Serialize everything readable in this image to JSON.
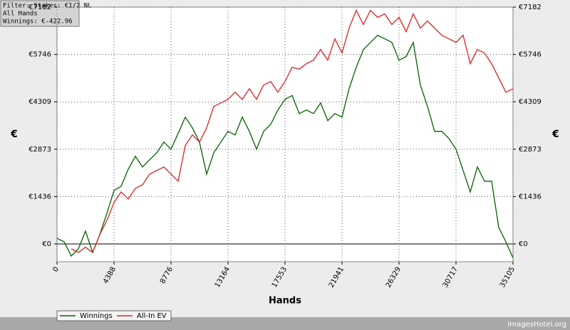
{
  "chart_data": {
    "type": "line",
    "info": [
      "Filter: Stakes: €1/2 NL",
      "All Hands",
      "Winnings: €-422.96"
    ],
    "x_label": "Hands",
    "y_label": "€",
    "y2_label": "€",
    "watermark": "ImagesHotel.org",
    "grid": true,
    "xlim": [
      0,
      35105
    ],
    "xticks": [
      0,
      4388,
      8776,
      13164,
      17553,
      21941,
      26329,
      30717,
      35105
    ],
    "ylim": [
      -540,
      7182
    ],
    "yticks": [
      {
        "value": 0,
        "label": "€0"
      },
      {
        "value": 1436,
        "label": "€1436"
      },
      {
        "value": 2873,
        "label": "€2873"
      },
      {
        "value": 4309,
        "label": "€4309"
      },
      {
        "value": 5746,
        "label": "€5746"
      },
      {
        "value": 7182,
        "label": "€7182"
      }
    ],
    "x": [
      0,
      549,
      1097,
      1646,
      2194,
      2743,
      3291,
      3840,
      4388,
      4937,
      5485,
      6034,
      6582,
      7131,
      7679,
      8228,
      8776,
      9325,
      9873,
      10422,
      10970,
      11519,
      12067,
      12616,
      13164,
      13713,
      14262,
      14810,
      15359,
      15907,
      16456,
      17004,
      17553,
      18101,
      18650,
      19198,
      19747,
      20295,
      20844,
      21392,
      21941,
      22489,
      23038,
      23586,
      24135,
      24683,
      25232,
      25780,
      26329,
      26877,
      27426,
      27975,
      28523,
      29072,
      29620,
      30169,
      30717,
      31266,
      31814,
      32363,
      32911,
      33460,
      34008,
      34557,
      35105
    ],
    "series": [
      {
        "name": "Winnings",
        "color": "#006400",
        "values": [
          173,
          65,
          -367,
          -150,
          389,
          -259,
          281,
          929,
          1620,
          1750,
          2268,
          2657,
          2333,
          2550,
          2765,
          3089,
          2873,
          3348,
          3845,
          3521,
          3089,
          2117,
          2765,
          3089,
          3413,
          3305,
          3845,
          3413,
          2873,
          3413,
          3629,
          4061,
          4385,
          4500,
          3953,
          4061,
          3953,
          4277,
          3737,
          3953,
          3845,
          4709,
          5357,
          5897,
          6113,
          6329,
          6221,
          6113,
          5573,
          5681,
          6113,
          4817,
          4169,
          3413,
          3413,
          3197,
          2873,
          2225,
          1577,
          2333,
          1901,
          1901,
          497,
          65,
          -423
        ]
      },
      {
        "name": "All-In EV",
        "color": "#dd2222",
        "values": [
          null,
          null,
          -151,
          -259,
          -100,
          -259,
          281,
          713,
          1253,
          1577,
          1361,
          1685,
          1793,
          2117,
          2225,
          2333,
          2117,
          1901,
          2981,
          3305,
          3089,
          3521,
          4169,
          4277,
          4385,
          4601,
          4385,
          4709,
          4385,
          4817,
          4925,
          4601,
          4925,
          5357,
          5300,
          5465,
          5573,
          5897,
          5573,
          6221,
          5789,
          6545,
          7085,
          6653,
          7085,
          6869,
          6977,
          6653,
          6869,
          6437,
          6977,
          6545,
          6761,
          6545,
          6329,
          6221,
          6113,
          6329,
          5465,
          5897,
          5789,
          5465,
          5033,
          4601,
          4709
        ]
      }
    ]
  }
}
